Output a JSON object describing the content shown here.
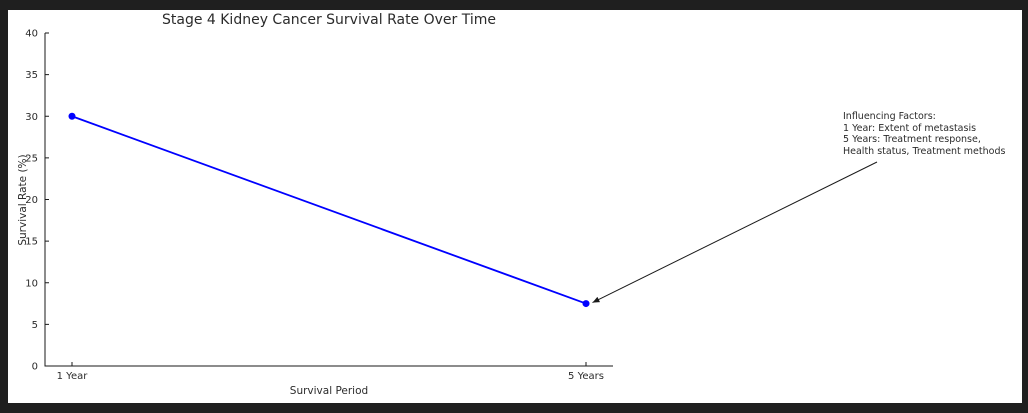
{
  "window": {
    "background_color": "#1f1f1f",
    "figure_background_color": "#ffffff"
  },
  "chart_data": {
    "type": "line",
    "title": "Stage 4 Kidney Cancer Survival Rate Over Time",
    "xlabel": "Survival Period",
    "ylabel": "Survival Rate (%)",
    "categories": [
      "1 Year",
      "5 Years"
    ],
    "series": [
      {
        "name": "Survival Rate (%)",
        "values": [
          30,
          7.5
        ],
        "color": "#0000ff",
        "marker": "circle"
      }
    ],
    "ylim": [
      0,
      40
    ],
    "yticks": [
      0,
      5,
      10,
      15,
      20,
      25,
      30,
      35,
      40
    ],
    "grid": false,
    "legend": "none",
    "axis_color": "#1a1a1a",
    "text_color": "#2b2b2b",
    "annotation": {
      "lines": [
        "Influencing Factors:",
        "1 Year: Extent of metastasis",
        "5 Years: Treatment response,",
        "Health status, Treatment methods"
      ],
      "arrow_points_to": {
        "category": "5 Years",
        "value": 7.5
      },
      "arrow_color": "#1a1a1a"
    }
  }
}
